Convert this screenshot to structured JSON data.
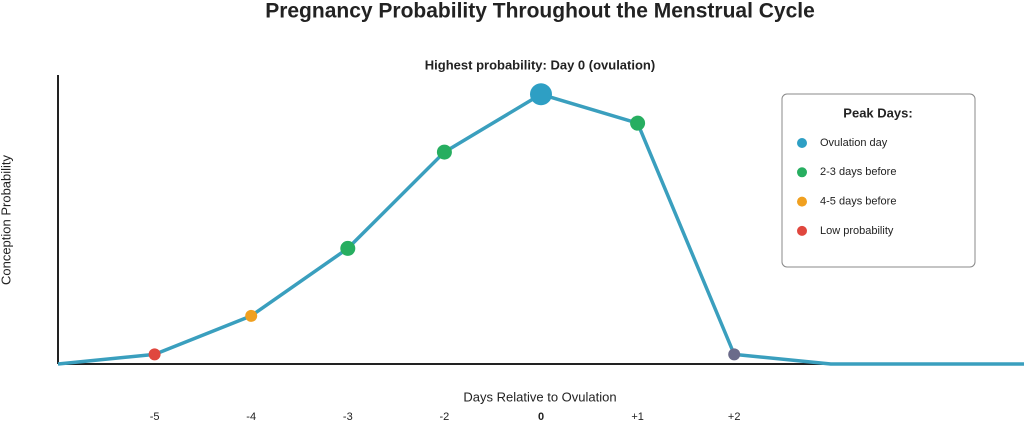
{
  "chart_data": {
    "type": "line",
    "title": "Pregnancy Probability Throughout the Menstrual Cycle",
    "annotation": "Highest probability: Day 0 (ovulation)",
    "x_label": "Days Relative to Ovulation",
    "y_label": "Conception Probability",
    "categories": [
      null,
      "-5",
      "-4",
      "-3",
      "-2",
      "0",
      "+1",
      "+2",
      null,
      null,
      null
    ],
    "values": [
      0,
      1,
      5,
      12,
      22,
      28,
      25,
      1,
      0,
      0,
      0
    ],
    "point_colors": [
      null,
      "#e0473e",
      "#f0a020",
      "#27ae60",
      "#27ae60",
      "#2e9fc4",
      "#27ae60",
      "#6b6b8a",
      null,
      null,
      null
    ],
    "point_sizes": [
      null,
      6,
      6,
      7.5,
      7.5,
      11,
      7.5,
      6,
      null,
      null,
      null
    ],
    "highlight": {
      "index": 5,
      "color": "#2e9fc4"
    },
    "line_color": "#3a9fbe",
    "ylim": [
      0,
      30
    ],
    "legend": {
      "title": "Peak Days:",
      "position": "upper right",
      "items": [
        {
          "label": "Ovulation day",
          "color": "#2e9fc4"
        },
        {
          "label": "2-3 days before",
          "color": "#27ae60"
        },
        {
          "label": "4-5 days before",
          "color": "#f0a020"
        },
        {
          "label": "Low probability",
          "color": "#e0473e"
        }
      ]
    }
  }
}
